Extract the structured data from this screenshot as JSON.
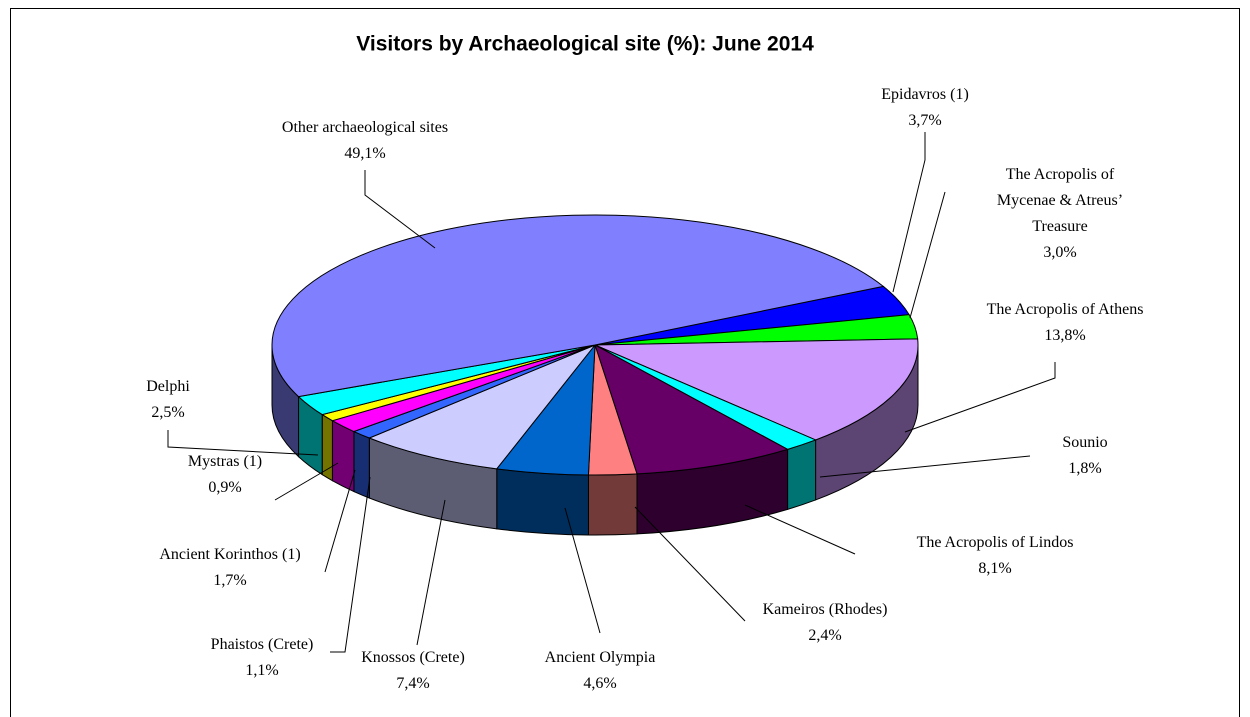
{
  "chart_data": {
    "type": "pie3d",
    "title": "Visitors by Archaeological site (%): June 2014",
    "categories": [
      "Epidavros (1)",
      "The Acropolis of Mycenae & Atreus’ Treasure",
      "The Acropolis of Athens",
      "Sounio",
      "The Acropolis of Lindos",
      "Kameiros (Rhodes)",
      "Ancient Olympia",
      "Knossos (Crete)",
      "Phaistos (Crete)",
      "Ancient Korinthos (1)",
      "Mystras (1)",
      "Delphi",
      "Other archaeological sites"
    ],
    "values": [
      3.7,
      3.0,
      13.8,
      1.8,
      8.1,
      2.4,
      4.6,
      7.4,
      1.1,
      1.7,
      0.9,
      2.5,
      49.1
    ],
    "value_labels": [
      "3,7%",
      "3,0%",
      "13,8%",
      "1,8%",
      "8,1%",
      "2,4%",
      "4,6%",
      "7,4%",
      "1,1%",
      "1,7%",
      "0,9%",
      "2,5%",
      "49,1%"
    ],
    "colors": [
      "#0000ff",
      "#00ff00",
      "#cc99ff",
      "#00ffff",
      "#660066",
      "#ff8080",
      "#0066cc",
      "#ccccff",
      "#3366ff",
      "#ff00ff",
      "#ffff00",
      "#00ffff",
      "#8080ff"
    ]
  }
}
